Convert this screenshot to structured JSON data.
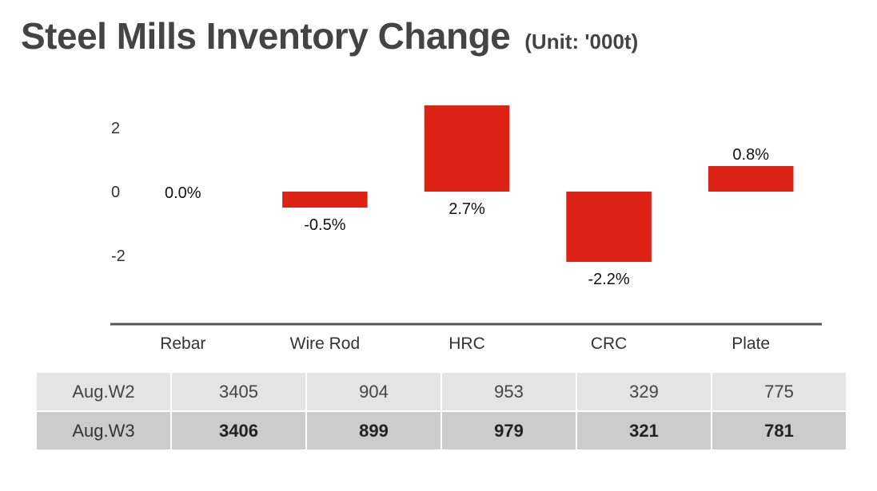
{
  "header": {
    "title": "Steel Mills Inventory Change",
    "unit": "(Unit: '000t)"
  },
  "chart_data": {
    "type": "bar",
    "categories": [
      "Rebar",
      "Wire Rod",
      "HRC",
      "CRC",
      "Plate"
    ],
    "values": [
      0.0,
      -0.5,
      2.7,
      -2.2,
      0.8
    ],
    "data_labels": [
      "0.0%",
      "-0.5%",
      "2.7%",
      "-2.2%",
      "0.8%"
    ],
    "y_ticks": [
      2,
      0,
      -2
    ],
    "y_tick_labels": [
      "2",
      "0",
      "-2"
    ],
    "ylim": [
      -3.9,
      2.7
    ],
    "grid": false,
    "bar_color": "#dd2216",
    "axis_color": "#555555"
  },
  "table": {
    "rows": [
      {
        "label": "Aug.W2",
        "values": [
          "3405",
          "904",
          "953",
          "329",
          "775"
        ]
      },
      {
        "label": "Aug.W3",
        "values": [
          "3406",
          "899",
          "979",
          "321",
          "781"
        ]
      }
    ]
  }
}
